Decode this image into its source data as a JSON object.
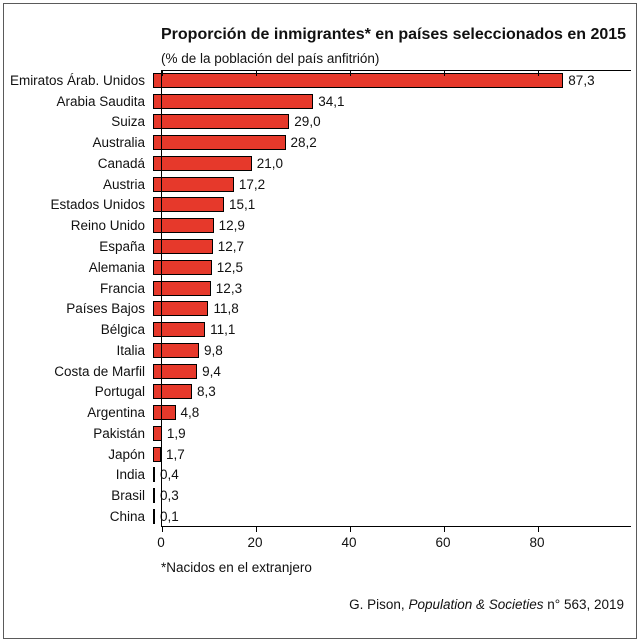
{
  "chart_data": {
    "type": "bar",
    "orientation": "horizontal",
    "title": "Proporción de inmigrantes* en países seleccionados en 2015",
    "subtitle": "(% de la población del país anfitrión)",
    "categories": [
      "Emiratos Árab. Unidos",
      "Arabia Saudita",
      "Suiza",
      "Australia",
      "Canadá",
      "Austria",
      "Estados Unidos",
      "Reino Unido",
      "España",
      "Alemania",
      "Francia",
      "Países Bajos",
      "Bélgica",
      "Italia",
      "Costa de Marfil",
      "Portugal",
      "Argentina",
      "Pakistán",
      "Japón",
      "India",
      "Brasil",
      "China"
    ],
    "values": [
      87.3,
      34.1,
      29.0,
      28.2,
      21.0,
      17.2,
      15.1,
      12.9,
      12.7,
      12.5,
      12.3,
      11.8,
      11.1,
      9.8,
      9.4,
      8.3,
      4.8,
      1.9,
      1.7,
      0.4,
      0.3,
      0.1
    ],
    "value_labels": [
      "87,3",
      "34,1",
      "29,0",
      "28,2",
      "21,0",
      "17,2",
      "15,1",
      "12,9",
      "12,7",
      "12,5",
      "12,3",
      "11,8",
      "11,1",
      "9,8",
      "9,4",
      "8,3",
      "4,8",
      "1,9",
      "1,7",
      "0,4",
      "0,3",
      "0,1"
    ],
    "xticks": [
      0,
      20,
      40,
      60,
      80
    ],
    "xlim": [
      0,
      100
    ],
    "grid": false,
    "legend": false,
    "bar_color": "#e6392b",
    "bar_border_color": "#000000",
    "footnote": "*Nacidos en el extranjero",
    "source_prefix": "G. Pison, ",
    "source_italic": "Population & Societies",
    "source_suffix": " n° 563, 2019"
  }
}
